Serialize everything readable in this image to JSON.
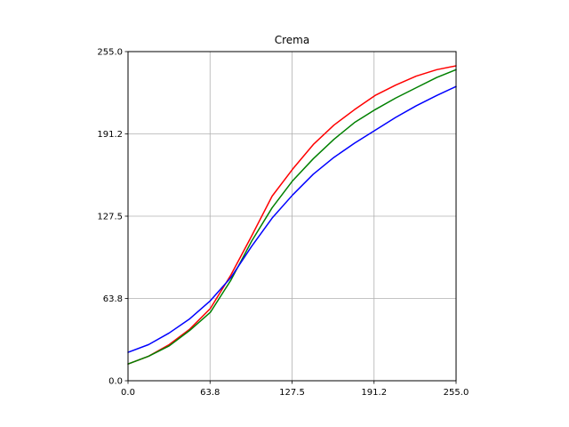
{
  "chart_data": {
    "type": "line",
    "title": "Crema",
    "xlabel": "",
    "ylabel": "",
    "xlim": [
      0,
      255
    ],
    "ylim": [
      0,
      255
    ],
    "grid": true,
    "xticks": [
      0,
      63.75,
      127.5,
      191.25,
      255
    ],
    "xtick_labels": [
      "0.0",
      "63.8",
      "127.5",
      "191.2",
      "255.0"
    ],
    "yticks": [
      0,
      63.75,
      127.5,
      191.25,
      255
    ],
    "ytick_labels": [
      "0.0",
      "63.8",
      "127.5",
      "191.2",
      "255.0"
    ],
    "x": [
      0,
      16,
      32,
      48,
      64,
      80,
      96,
      112,
      128,
      144,
      160,
      176,
      192,
      208,
      224,
      240,
      255
    ],
    "series": [
      {
        "color": "#ff0000",
        "values": [
          13,
          19,
          28,
          40,
          56,
          82,
          112,
          143,
          164,
          183,
          198,
          210,
          221,
          229,
          236,
          241,
          244
        ]
      },
      {
        "color": "#008000",
        "values": [
          13,
          19,
          27,
          39,
          53,
          78,
          108,
          134,
          155,
          172,
          187,
          200,
          210,
          219,
          227,
          235,
          241
        ]
      },
      {
        "color": "#0000ff",
        "values": [
          22,
          28,
          37,
          48,
          62,
          80,
          104,
          126,
          144,
          160,
          173,
          184,
          194,
          204,
          213,
          221,
          228
        ]
      }
    ]
  }
}
